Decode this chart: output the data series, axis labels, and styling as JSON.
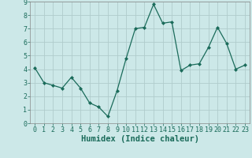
{
  "xlabel": "Humidex (Indice chaleur)",
  "x": [
    0,
    1,
    2,
    3,
    4,
    5,
    6,
    7,
    8,
    9,
    10,
    11,
    12,
    13,
    14,
    15,
    16,
    17,
    18,
    19,
    20,
    21,
    22,
    23
  ],
  "y": [
    4.1,
    3.0,
    2.8,
    2.6,
    3.4,
    2.6,
    1.5,
    1.2,
    0.5,
    2.4,
    4.8,
    7.0,
    7.1,
    8.8,
    7.4,
    7.5,
    3.9,
    4.3,
    4.4,
    5.6,
    7.1,
    5.9,
    4.0,
    4.3
  ],
  "line_color": "#1a6b5a",
  "marker": "D",
  "marker_size": 2,
  "bg_color": "#cce8e8",
  "grid_color": "#b0cccc",
  "ylim": [
    0,
    9
  ],
  "xlim": [
    -0.5,
    23.5
  ],
  "yticks": [
    0,
    1,
    2,
    3,
    4,
    5,
    6,
    7,
    8,
    9
  ],
  "xticks": [
    0,
    1,
    2,
    3,
    4,
    5,
    6,
    7,
    8,
    9,
    10,
    11,
    12,
    13,
    14,
    15,
    16,
    17,
    18,
    19,
    20,
    21,
    22,
    23
  ],
  "tick_fontsize": 6,
  "xlabel_fontsize": 7.5
}
